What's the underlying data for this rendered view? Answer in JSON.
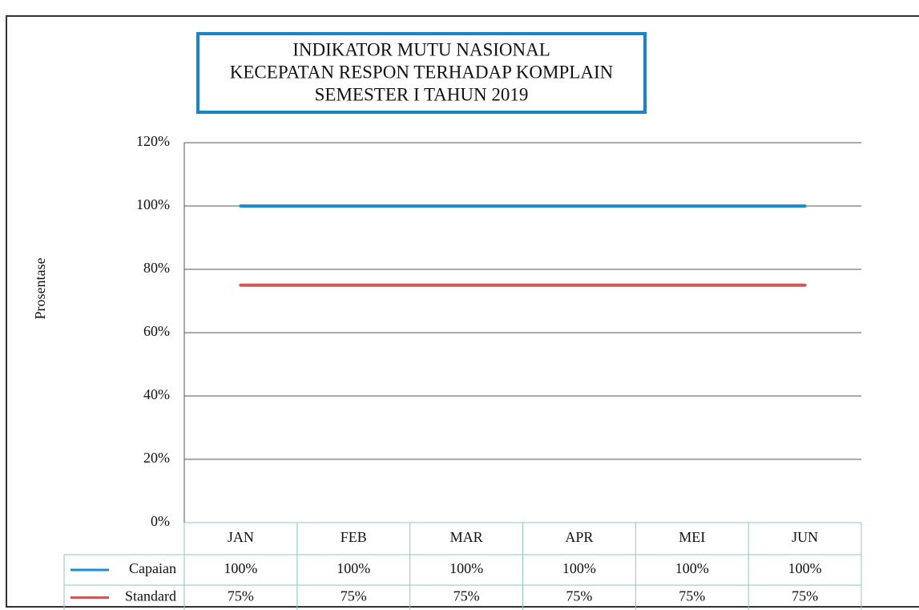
{
  "chart_data": {
    "type": "line",
    "title": [
      "INDIKATOR MUTU NASIONAL",
      "KECEPATAN RESPON TERHADAP KOMPLAIN",
      "SEMESTER I TAHUN 2019"
    ],
    "ylabel": "Prosentase",
    "categories": [
      "JAN",
      "FEB",
      "MAR",
      "APR",
      "MEI",
      "JUN"
    ],
    "series": [
      {
        "name": "Capaian",
        "color": "#1a8fd0",
        "values": [
          100,
          100,
          100,
          100,
          100,
          100
        ],
        "value_labels": [
          "100%",
          "100%",
          "100%",
          "100%",
          "100%",
          "100%"
        ]
      },
      {
        "name": "Standard",
        "color": "#d05555",
        "values": [
          75,
          75,
          75,
          75,
          75,
          75
        ],
        "value_labels": [
          "75%",
          "75%",
          "75%",
          "75%",
          "75%",
          "75%"
        ]
      }
    ],
    "ylim": [
      0,
      120
    ],
    "yticks": [
      {
        "value": 0,
        "label": "0%"
      },
      {
        "value": 20,
        "label": "20%"
      },
      {
        "value": 40,
        "label": "40%"
      },
      {
        "value": 60,
        "label": "60%"
      },
      {
        "value": 80,
        "label": "80%"
      },
      {
        "value": 100,
        "label": "100%"
      },
      {
        "value": 120,
        "label": "120%"
      }
    ],
    "grid": true
  }
}
